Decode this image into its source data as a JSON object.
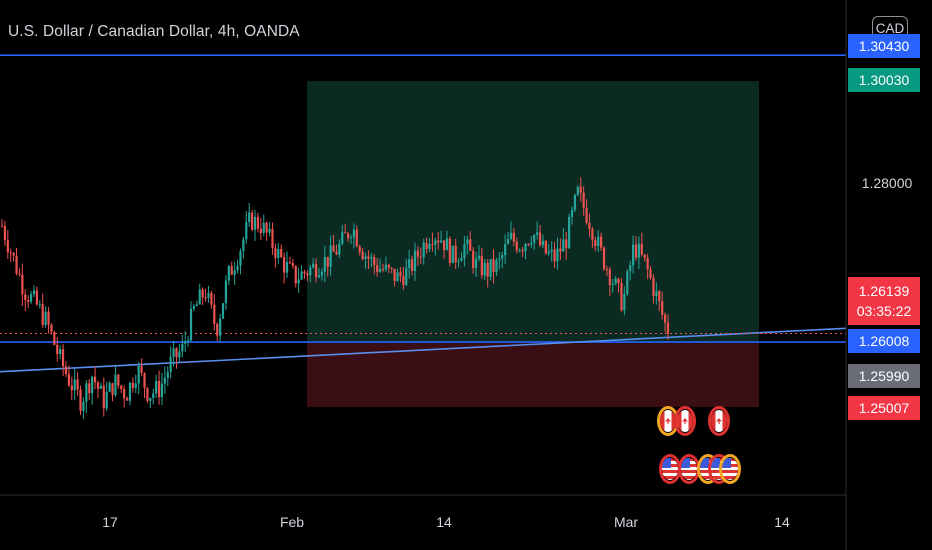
{
  "header": {
    "title": "U.S. Dollar / Canadian Dollar, 4h, OANDA",
    "currency_button": "CAD"
  },
  "colors": {
    "up": "#26a69a",
    "down": "#ef5350",
    "horizontal_line": "#2962ff",
    "trend_line": "#5b8def",
    "tp_zone": "#0b2a22",
    "sl_zone": "#3a0e12",
    "price_line": "#ef5350"
  },
  "price_tags": {
    "top_line": "1.30430",
    "target": "1.30030",
    "last_price": "1.26139",
    "countdown": "03:35:22",
    "support_line": "1.26008",
    "entry": "1.25990",
    "stop": "1.25007"
  },
  "chart_data": {
    "type": "candlestick",
    "symbol": "USDCAD",
    "interval": "4h",
    "source": "OANDA",
    "y_ticks": [
      "1.28000"
    ],
    "x_ticks": [
      "17",
      "Feb",
      "14",
      "Mar",
      "14"
    ],
    "ylim": [
      1.2365,
      1.3128
    ],
    "last_price": 1.26139,
    "horizontal_lines": [
      1.3043,
      1.26008
    ],
    "trend_line": {
      "from": [
        1.2555,
        "Jan 05"
      ],
      "to": [
        1.2622,
        "Mar 19"
      ]
    },
    "position": {
      "entry": 1.2599,
      "target": 1.3003,
      "stop": 1.25007
    },
    "close_path": [
      1.278,
      1.273,
      1.268,
      1.266,
      1.263,
      1.258,
      1.254,
      1.251,
      1.255,
      1.251,
      1.254,
      1.252,
      1.256,
      1.252,
      1.253,
      1.257,
      1.259,
      1.265,
      1.268,
      1.262,
      1.27,
      1.274,
      1.279,
      1.278,
      1.275,
      1.272,
      1.27,
      1.271,
      1.272,
      1.273,
      1.275,
      1.278,
      1.274,
      1.272,
      1.271,
      1.27,
      1.271,
      1.274,
      1.277,
      1.276,
      1.273,
      1.275,
      1.272,
      1.271,
      1.272,
      1.276,
      1.275,
      1.277,
      1.274,
      1.273,
      1.276,
      1.283,
      1.279,
      1.274,
      1.27,
      1.266,
      1.275,
      1.272,
      1.267,
      1.2614
    ],
    "x_span_bars": [
      0,
      59
    ]
  },
  "event_markers": {
    "row1": [
      "ca",
      "ca",
      "ca"
    ],
    "row2": [
      "us",
      "us",
      "us",
      "us",
      "us"
    ]
  }
}
